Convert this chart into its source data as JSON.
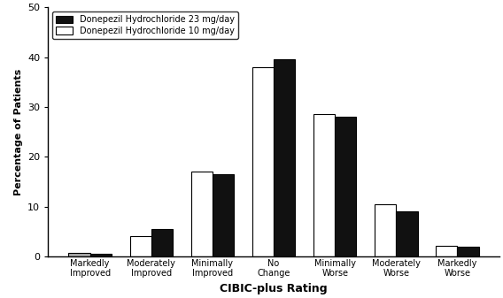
{
  "categories": [
    "Markedly\nImproved",
    "Moderately\nImproved",
    "Minimally\nImproved",
    "No\nChange",
    "Minimally\nWorse",
    "Moderately\nWorse",
    "Markedly\nWorse"
  ],
  "series_23mg": [
    0.5,
    5.5,
    16.5,
    39.5,
    28.0,
    9.0,
    2.0
  ],
  "series_10mg": [
    0.7,
    4.0,
    17.0,
    38.0,
    28.5,
    10.5,
    2.2
  ],
  "color_23mg": "#111111",
  "color_10mg": "#ffffff",
  "color_markedly_improved_10mg": "#aaaaaa",
  "edgecolor": "#000000",
  "label_23mg": "Donepezil Hydrochloride 23 mg/day",
  "label_10mg": "Donepezil Hydrochloride 10 mg/day",
  "ylabel": "Percentage of Patients",
  "xlabel": "CIBIC-plus Rating",
  "ylim": [
    0,
    50
  ],
  "yticks": [
    0,
    10,
    20,
    30,
    40,
    50
  ],
  "bar_width": 0.35,
  "background_color": "#ffffff"
}
